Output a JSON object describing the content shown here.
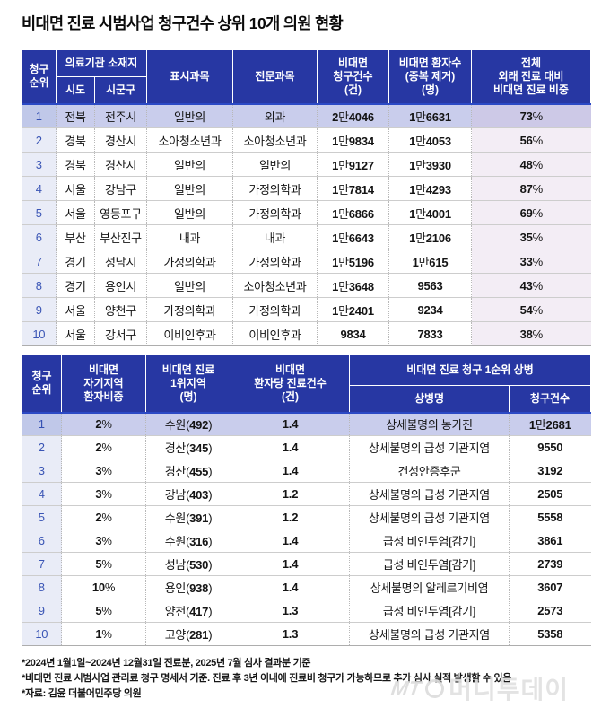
{
  "title": "비대면 진료 시범사업 청구건수 상위 10개 의원 현황",
  "colors": {
    "header_bg": "#2737a3",
    "header_accent_line": "#2b49c5",
    "highlight_row_bg": "#c9cdec",
    "rank_column_bg": "#e9ecf7",
    "share_column_bg": "#f3edf5",
    "rank_text": "#3a55b5"
  },
  "table1": {
    "header": {
      "rank": "청구\n순위",
      "location_group": "의료기관 소재지",
      "sido": "시도",
      "sigungu": "시군구",
      "display_dept": "표시과목",
      "specialty": "전문과목",
      "claims": "비대면\n청구건수\n(건)",
      "patients": "비대면 환자수\n(중복 제거)\n(명)",
      "share": "전체\n외래 진료 대비\n비대면 진료 비중"
    }
  },
  "table2": {
    "header": {
      "rank": "청구\n순위",
      "local_share": "비대면\n자기지역\n환자비중",
      "top_region": "비대면 진료\n1위지역\n(명)",
      "per_patient": "비대면\n환자당 진료건수\n(건)",
      "top_disease_group": "비대면 진료 청구 1순위 상병",
      "disease_name": "상병명",
      "claims": "청구건수"
    }
  },
  "footnotes": [
    "*2024년 1월1일~2024년 12월31일 진료분, 2025년 7월 심사 결과분 기준",
    "*비대면 진료 시범사업 관리료 청구 명세서 기준. 진료 후 3년 이내에 진료비 청구가 가능하므로 추가 심사 실적 발생할 수 있음",
    "*자료: 김윤 더불어민주당 의원"
  ],
  "watermark": {
    "prefix": "MT",
    "name": "머니투데이"
  },
  "chart_data": [
    {
      "type": "table",
      "title": "비대면 진료 시범사업 청구건수 상위 10개 의원 현황",
      "columns": [
        "청구 순위",
        "시도",
        "시군구",
        "표시과목",
        "전문과목",
        "비대면 청구건수(건)",
        "비대면 환자수(중복 제거)(명)",
        "전체 외래 진료 대비 비대면 진료 비중"
      ],
      "rows": [
        [
          "1",
          "전북",
          "전주시",
          "일반의",
          "외과",
          "2만4046",
          "1만6631",
          "73%"
        ],
        [
          "2",
          "경북",
          "경산시",
          "소아청소년과",
          "소아청소년과",
          "1만9834",
          "1만4053",
          "56%"
        ],
        [
          "3",
          "경북",
          "경산시",
          "일반의",
          "일반의",
          "1만9127",
          "1만3930",
          "48%"
        ],
        [
          "4",
          "서울",
          "강남구",
          "일반의",
          "가정의학과",
          "1만7814",
          "1만4293",
          "87%"
        ],
        [
          "5",
          "서울",
          "영등포구",
          "일반의",
          "가정의학과",
          "1만6866",
          "1만4001",
          "69%"
        ],
        [
          "6",
          "부산",
          "부산진구",
          "내과",
          "내과",
          "1만6643",
          "1만2106",
          "35%"
        ],
        [
          "7",
          "경기",
          "성남시",
          "가정의학과",
          "가정의학과",
          "1만5196",
          "1만615",
          "33%"
        ],
        [
          "8",
          "경기",
          "용인시",
          "일반의",
          "소아청소년과",
          "1만3648",
          "9563",
          "43%"
        ],
        [
          "9",
          "서울",
          "양천구",
          "가정의학과",
          "가정의학과",
          "1만2401",
          "9234",
          "54%"
        ],
        [
          "10",
          "서울",
          "강서구",
          "이비인후과",
          "이비인후과",
          "9834",
          "7833",
          "38%"
        ]
      ]
    },
    {
      "type": "table",
      "columns": [
        "청구 순위",
        "비대면 자기지역 환자비중",
        "비대면 진료 1위지역(명)",
        "비대면 환자당 진료건수(건)",
        "비대면 진료 청구 1순위 상병 - 상병명",
        "비대면 진료 청구 1순위 상병 - 청구건수"
      ],
      "rows": [
        [
          "1",
          "2%",
          "수원(492)",
          "1.4",
          "상세불명의 농가진",
          "1만2681"
        ],
        [
          "2",
          "2%",
          "경산(345)",
          "1.4",
          "상세불명의 급성 기관지염",
          "9550"
        ],
        [
          "3",
          "3%",
          "경산(455)",
          "1.4",
          "건성안증후군",
          "3192"
        ],
        [
          "4",
          "3%",
          "강남(403)",
          "1.2",
          "상세불명의 급성 기관지염",
          "2505"
        ],
        [
          "5",
          "2%",
          "수원(391)",
          "1.2",
          "상세불명의 급성 기관지염",
          "5558"
        ],
        [
          "6",
          "3%",
          "수원(316)",
          "1.4",
          "급성 비인두염[감기]",
          "3861"
        ],
        [
          "7",
          "5%",
          "성남(530)",
          "1.4",
          "급성 비인두염[감기]",
          "2739"
        ],
        [
          "8",
          "10%",
          "용인(938)",
          "1.4",
          "상세불명의 알레르기비염",
          "3607"
        ],
        [
          "9",
          "5%",
          "양천(417)",
          "1.3",
          "급성 비인두염[감기]",
          "2573"
        ],
        [
          "10",
          "1%",
          "고양(281)",
          "1.3",
          "상세불명의 급성 기관지염",
          "5358"
        ]
      ]
    }
  ]
}
